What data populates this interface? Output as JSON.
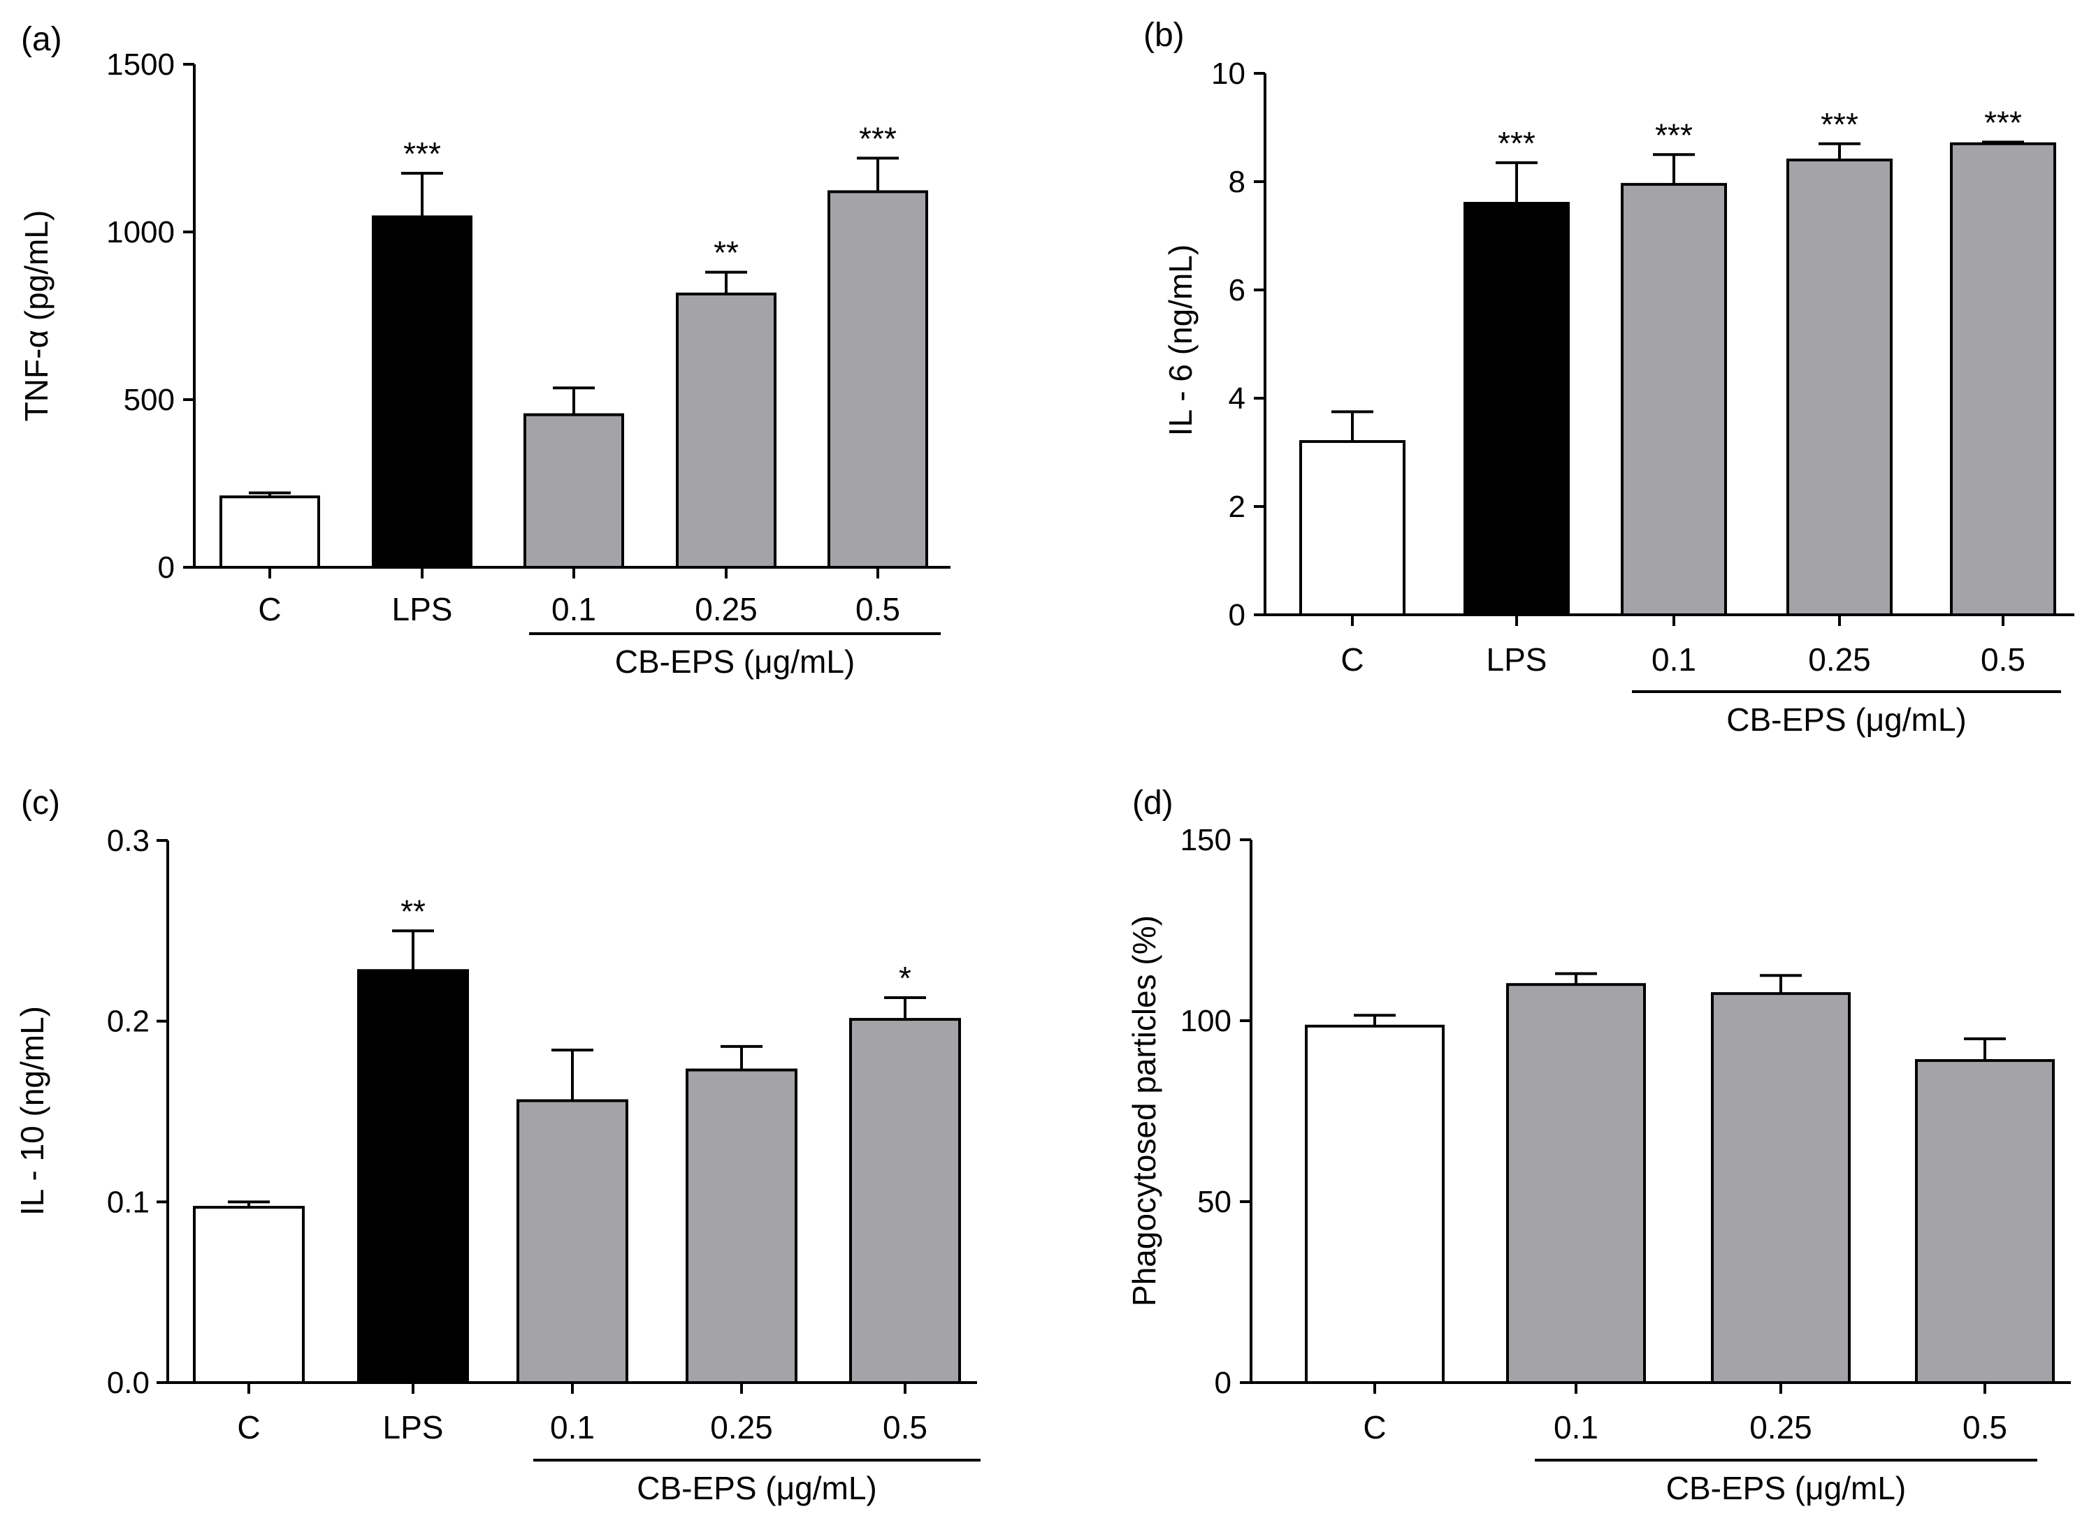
{
  "colors": {
    "control": "#ffffff",
    "lps": "#000000",
    "treatment": "#a3a3a8",
    "axis": "#000000"
  },
  "chart_data": [
    {
      "panel": "(a)",
      "type": "bar",
      "title": "",
      "ylabel": "TNF-α (pg/mL)",
      "ylim": [
        0,
        1500
      ],
      "yticks": [
        0,
        500,
        1000,
        1500
      ],
      "ytick_labels": [
        "0",
        "500",
        "1000",
        "1500"
      ],
      "categories": [
        "C",
        "LPS",
        "0.1",
        "0.25",
        "0.5"
      ],
      "values": [
        210,
        1045,
        455,
        815,
        1120
      ],
      "errors": [
        12,
        130,
        80,
        65,
        100
      ],
      "significance": [
        "",
        "***",
        "",
        "**",
        "***"
      ],
      "bar_kinds": [
        "control",
        "lps",
        "treatment",
        "treatment",
        "treatment"
      ],
      "group_label": "CB-EPS (μg/mL)",
      "group_range": [
        2,
        4
      ]
    },
    {
      "panel": "(b)",
      "type": "bar",
      "title": "",
      "ylabel": "IL - 6 (ng/mL)",
      "ylim": [
        0,
        10
      ],
      "yticks": [
        0,
        2,
        4,
        6,
        8,
        10
      ],
      "ytick_labels": [
        "0",
        "2",
        "4",
        "6",
        "8",
        "10"
      ],
      "categories": [
        "C",
        "LPS",
        "0.1",
        "0.25",
        "0.5"
      ],
      "values": [
        3.2,
        7.6,
        7.95,
        8.4,
        8.7
      ],
      "errors": [
        0.55,
        0.75,
        0.55,
        0.3,
        0.03
      ],
      "significance": [
        "",
        "***",
        "***",
        "***",
        "***"
      ],
      "bar_kinds": [
        "control",
        "lps",
        "treatment",
        "treatment",
        "treatment"
      ],
      "group_label": "CB-EPS (μg/mL)",
      "group_range": [
        2,
        4
      ]
    },
    {
      "panel": "(c)",
      "type": "bar",
      "title": "",
      "ylabel": "IL - 10 (ng/mL)",
      "ylim": [
        0,
        0.3
      ],
      "yticks": [
        0,
        0.1,
        0.2,
        0.3
      ],
      "ytick_labels": [
        "0.0",
        "0.1",
        "0.2",
        "0.3"
      ],
      "categories": [
        "C",
        "LPS",
        "0.1",
        "0.25",
        "0.5"
      ],
      "values": [
        0.097,
        0.228,
        0.156,
        0.173,
        0.201
      ],
      "errors": [
        0.003,
        0.022,
        0.028,
        0.013,
        0.012
      ],
      "significance": [
        "",
        "**",
        "",
        "",
        "*"
      ],
      "bar_kinds": [
        "control",
        "lps",
        "treatment",
        "treatment",
        "treatment"
      ],
      "group_label": "CB-EPS (μg/mL)",
      "group_range": [
        2,
        4
      ]
    },
    {
      "panel": "(d)",
      "type": "bar",
      "title": "",
      "ylabel": "Phagocytosed particles (%)",
      "ylim": [
        0,
        150
      ],
      "yticks": [
        0,
        50,
        100,
        150
      ],
      "ytick_labels": [
        "0",
        "50",
        "100",
        "150"
      ],
      "categories": [
        "C",
        "0.1",
        "0.25",
        "0.5"
      ],
      "values": [
        98.5,
        110,
        107.5,
        89
      ],
      "errors": [
        3,
        3,
        5,
        6
      ],
      "significance": [
        "",
        "",
        "",
        ""
      ],
      "bar_kinds": [
        "control",
        "treatment",
        "treatment",
        "treatment"
      ],
      "group_label": "CB-EPS (μg/mL)",
      "group_range": [
        1,
        3
      ]
    }
  ]
}
